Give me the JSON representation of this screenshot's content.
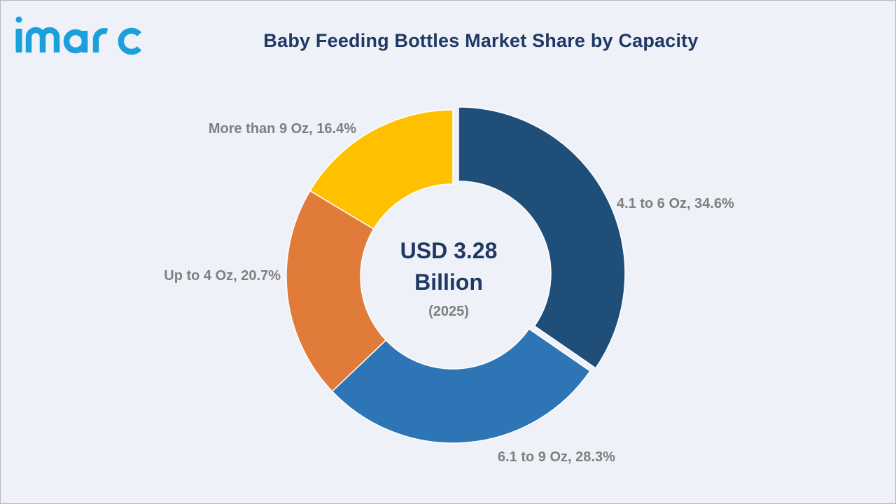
{
  "logo": {
    "text": "imarc",
    "color": "#1ca0dc"
  },
  "chart_data": {
    "type": "pie",
    "style": "donut",
    "title": "Baby Feeding Bottles Market Share by Capacity",
    "unit": "%",
    "slices": [
      {
        "label": "4.1 to 6 Oz",
        "value": 34.6,
        "color": "#1f4e79",
        "exploded": true
      },
      {
        "label": "6.1 to 9 Oz",
        "value": 28.3,
        "color": "#2e75b6",
        "exploded": false
      },
      {
        "label": "Up to 4 Oz",
        "value": 20.7,
        "color": "#e07b39",
        "exploded": false
      },
      {
        "label": "More than 9 Oz",
        "value": 16.4,
        "color": "#ffc000",
        "exploded": false
      }
    ],
    "center_text": {
      "line1": "USD 3.28",
      "line2": "Billion",
      "line3": "(2025)"
    },
    "legend": "none"
  },
  "colors": {
    "background": "#eef2f8",
    "title": "#1f3864",
    "label": "#7f7f7f"
  }
}
